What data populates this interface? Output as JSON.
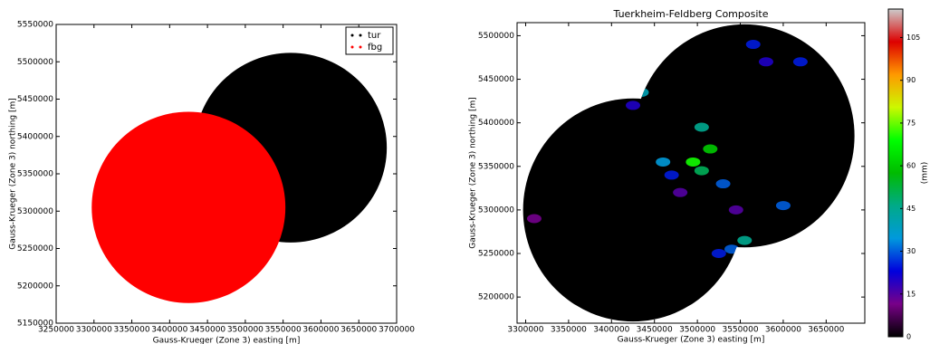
{
  "chart_data": [
    {
      "type": "scatter",
      "xlabel": "Gauss-Krueger (Zone 3) easting [m]",
      "ylabel": "Gauss-Krueger (Zone 3) northing [m]",
      "xlim": [
        3250000,
        3700000
      ],
      "xticks": [
        3250000,
        3300000,
        3350000,
        3400000,
        3450000,
        3500000,
        3550000,
        3600000,
        3650000,
        3700000
      ],
      "ylim": [
        5150000,
        5550000
      ],
      "yticks": [
        5150000,
        5200000,
        5250000,
        5300000,
        5350000,
        5400000,
        5450000,
        5500000,
        5550000
      ],
      "legend": "upper right",
      "series": [
        {
          "name": "tur",
          "color": "#000000",
          "x": [
            3560000
          ],
          "y": [
            5385000
          ],
          "radius": [
            127000
          ]
        },
        {
          "name": "fbg",
          "color": "#ff0000",
          "x": [
            3425000
          ],
          "y": [
            5305000
          ],
          "radius": [
            128000
          ]
        }
      ]
    },
    {
      "type": "heatmap",
      "title": "Tuerkheim-Feldberg Composite",
      "xlabel": "Gauss-Krueger (Zone 3) easting [m]",
      "ylabel": "Gauss-Krueger (Zone 3) northing [m]",
      "xlim": [
        3290000,
        3695000
      ],
      "xticks": [
        3300000,
        3350000,
        3400000,
        3450000,
        3500000,
        3550000,
        3600000,
        3650000
      ],
      "ylim": [
        5170000,
        5515000
      ],
      "yticks": [
        5200000,
        5250000,
        5300000,
        5350000,
        5400000,
        5450000,
        5500000
      ],
      "disks": {
        "x": [
          3555000,
          3425000
        ],
        "y": [
          5385000,
          5300000
        ],
        "radius": [
          128000,
          128000
        ]
      },
      "x": [
        3435000,
        3425000,
        3505000,
        3515000,
        3495000,
        3505000,
        3460000,
        3470000,
        3530000,
        3555000,
        3540000,
        3525000,
        3600000,
        3565000,
        3580000,
        3620000,
        3310000,
        3545000,
        3480000
      ],
      "y": [
        5435000,
        5420000,
        5395000,
        5370000,
        5355000,
        5345000,
        5355000,
        5340000,
        5330000,
        5265000,
        5255000,
        5250000,
        5305000,
        5490000,
        5470000,
        5470000,
        5290000,
        5300000,
        5320000
      ],
      "values": [
        40,
        20,
        45,
        60,
        70,
        50,
        35,
        25,
        30,
        45,
        30,
        25,
        30,
        25,
        20,
        25,
        12,
        15,
        15
      ],
      "colorbar_label": "(mm)",
      "clim": [
        0,
        115
      ],
      "cticks": [
        0,
        15,
        30,
        45,
        60,
        75,
        90,
        105
      ]
    }
  ]
}
